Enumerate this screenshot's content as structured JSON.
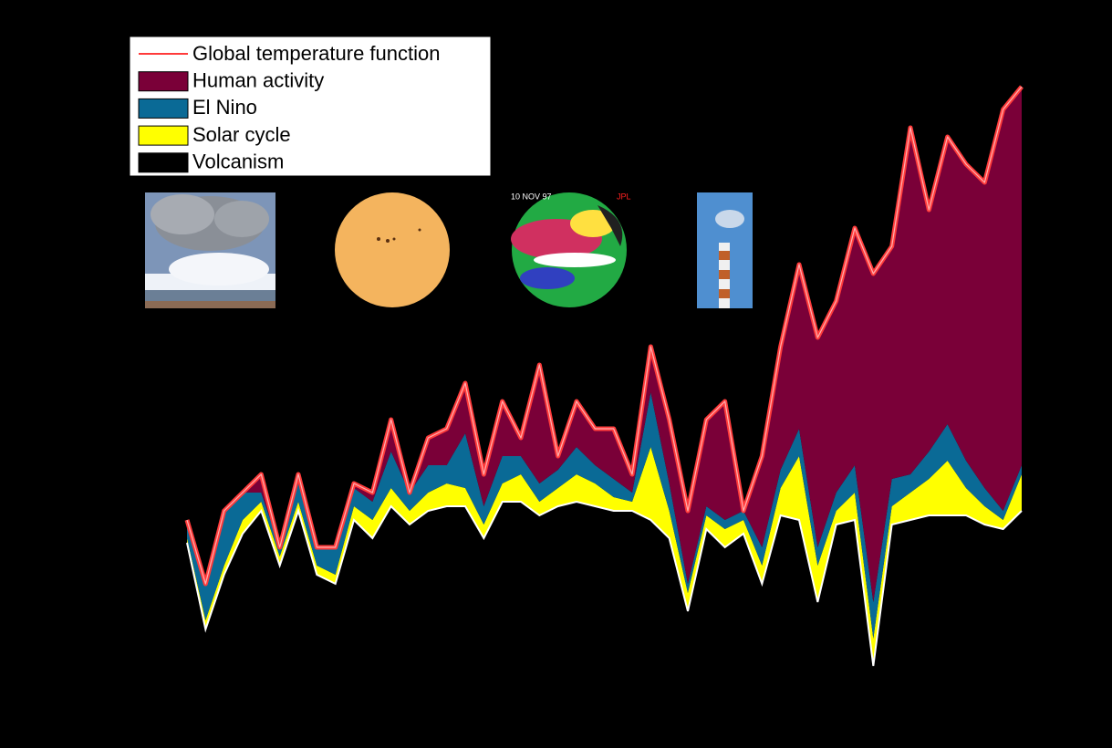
{
  "chart_data": {
    "type": "stacked-area",
    "ylim": [
      -18,
      48
    ],
    "annotations": [
      "10 NOV 97",
      "JPL"
    ],
    "series": [
      {
        "name": "Global temperature function",
        "kind": "line",
        "color": "#ff3b3b",
        "values": [
          -1,
          -8,
          0,
          2,
          4,
          -4,
          4,
          -4,
          -4,
          3,
          2,
          10,
          2,
          8,
          9,
          14,
          4,
          12,
          8,
          16,
          6,
          12,
          9,
          9,
          4,
          18,
          10,
          0,
          10,
          12,
          0,
          6,
          18,
          27,
          19,
          23,
          31,
          26,
          29,
          42,
          33,
          41,
          38,
          36,
          44,
          46.5
        ]
      },
      {
        "name": "Human activity",
        "kind": "area",
        "color": "#7a0038",
        "values": [
          0,
          0,
          0,
          0,
          2,
          0,
          1,
          0,
          0,
          0.5,
          1,
          3.5,
          0,
          3,
          4,
          5.5,
          3.5,
          6,
          2,
          13,
          1.5,
          5,
          4,
          5.5,
          2,
          5,
          7,
          8,
          9.5,
          13,
          0,
          10,
          13.5,
          18,
          23,
          21,
          26,
          36,
          25.5,
          38,
          26.5,
          31.5,
          32.5,
          33.5,
          44,
          41.5
        ]
      },
      {
        "name": "El Nino",
        "kind": "area",
        "color": "#0a6a96",
        "values": [
          2,
          4,
          6,
          3,
          1,
          1,
          2,
          2,
          3,
          2,
          2,
          4,
          2,
          3,
          2,
          6,
          2,
          3,
          2,
          2,
          2,
          3,
          2,
          2,
          1,
          6,
          3,
          1,
          1,
          1,
          1,
          2,
          2,
          3,
          2,
          2,
          3,
          4,
          3,
          2,
          3,
          4,
          3,
          2,
          1,
          1
        ]
      },
      {
        "name": "Solar cycle",
        "kind": "area",
        "color": "#ffff00",
        "values": [
          0.5,
          1,
          1,
          1.5,
          1,
          1,
          1,
          1,
          1,
          1.5,
          2,
          2,
          1.5,
          2,
          2.5,
          2,
          1.5,
          2,
          3,
          1.5,
          2,
          3,
          2.5,
          1.5,
          1,
          8,
          3,
          2,
          1.5,
          2,
          1.5,
          2,
          3,
          7,
          4,
          1.5,
          3,
          3,
          2,
          3,
          4,
          6,
          3,
          2,
          1,
          4
        ]
      },
      {
        "name": "Volcanism",
        "kind": "base",
        "color": "#000000",
        "values": [
          -3.5,
          -13,
          -7,
          -2.5,
          0,
          -6,
          0,
          -7,
          -8,
          -1,
          -3,
          0.5,
          -1.5,
          0,
          0.5,
          0.5,
          -3,
          1,
          1,
          -0.5,
          0.5,
          1,
          0.5,
          0,
          0,
          -1,
          -3,
          -11,
          -2,
          -4,
          -2.5,
          -8,
          -0.5,
          -1,
          -10,
          -1.5,
          -1,
          -17,
          -1.5,
          -1,
          -0.5,
          -0.5,
          -0.5,
          -1.5,
          -2,
          0
        ]
      }
    ]
  }
}
